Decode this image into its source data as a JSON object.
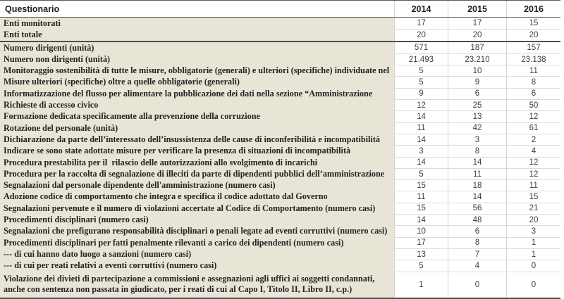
{
  "table": {
    "title": "Questionario",
    "columns": [
      "2014",
      "2015",
      "2016"
    ],
    "colors": {
      "label_column_bg": "#e9e5d6",
      "divider_dark": "#4f4f4f",
      "divider_light": "#dcdcd8",
      "label_text": "#232323",
      "value_text": "#3e3e3e"
    },
    "thick_divider_before_row_index": 2,
    "rows": [
      {
        "label": "Enti monitorati",
        "values": [
          "17",
          "17",
          "15"
        ]
      },
      {
        "label": "Enti totale",
        "values": [
          "20",
          "20",
          "20"
        ]
      },
      {
        "label": "Numero dirigenti (unità)",
        "values": [
          "571",
          "187",
          "157"
        ]
      },
      {
        "label": "Numero non dirigenti (unità)",
        "values": [
          "21.493",
          "23.210",
          "23.138"
        ]
      },
      {
        "label": "Monitoraggio sostenibilità di tutte le misure, obbligatorie (generali) e ulteriori (specifiche) individuate nel",
        "values": [
          "5",
          "10",
          "11"
        ]
      },
      {
        "label": "Misure ulteriori (specifiche) oltre a quelle obbligatorie (generali)",
        "values": [
          "5",
          "9",
          "8"
        ]
      },
      {
        "label": "Informatizzazione del flusso per alimentare la pubblicazione dei dati nella sezione “Amministrazione",
        "values": [
          "9",
          "6",
          "6"
        ]
      },
      {
        "label": "Richieste di accesso civico",
        "values": [
          "12",
          "25",
          "50"
        ]
      },
      {
        "label": "Formazione dedicata specificamente alla prevenzione della corruzione",
        "values": [
          "14",
          "13",
          "12"
        ]
      },
      {
        "label": "Rotazione del personale (unità)",
        "values": [
          "11",
          "42",
          "61"
        ]
      },
      {
        "label": "Dichiarazione da parte dell’interessato dell’insussistenza delle cause di inconferibilità e incompatibilità",
        "values": [
          "14",
          "3",
          "2"
        ]
      },
      {
        "label": "Indicare se sono state adottate misure per verificare la presenza di situazioni di incompatibilità",
        "values": [
          "3",
          "8",
          "4"
        ]
      },
      {
        "label": "Procedura prestabilita per il  rilascio delle autorizzazioni allo svolgimento di incarichi",
        "values": [
          "14",
          "14",
          "12"
        ]
      },
      {
        "label": "Procedura per la raccolta di segnalazione di illeciti da parte di dipendenti pubblici dell’amministrazione",
        "values": [
          "5",
          "11",
          "12"
        ]
      },
      {
        "label": "Segnalazioni dal personale dipendente dell'amministrazione (numero casi)",
        "values": [
          "15",
          "18",
          "11"
        ]
      },
      {
        "label": "Adozione codice di comportamento che integra e specifica il codice adottato dal Governo",
        "values": [
          "11",
          "14",
          "15"
        ]
      },
      {
        "label": "Segnalazioni pervenute e il numero di violazioni accertate al Codice di Comportamento (numero casi)",
        "values": [
          "15",
          "56",
          "21"
        ]
      },
      {
        "label": "Procedimenti disciplinari (numero casi)",
        "values": [
          "14",
          "48",
          "20"
        ]
      },
      {
        "label": "Segnalazioni che prefigurano responsabilità disciplinari o penali legate ad eventi corruttivi (numero casi)",
        "values": [
          "10",
          "6",
          "3"
        ]
      },
      {
        "label": "Procedimenti disciplinari per fatti penalmente rilevanti a carico dei dipendenti (numero casi)",
        "values": [
          "17",
          "8",
          "1"
        ]
      },
      {
        "label": "--- di cui hanno dato luogo a sanzioni (numero casi)",
        "values": [
          "13",
          "7",
          "1"
        ]
      },
      {
        "label": "--- di cui per reati relativi a eventi corruttivi (numero casi)",
        "values": [
          "5",
          "4",
          "0"
        ]
      },
      {
        "label": "Violazione dei divieti di partecipazione a commissioni e assegnazioni agli uffici ai soggetti condannati,\nanche con sentenza non passata in giudicato, per i reati di cui al Capo I, Titolo II, Libro II, c.p.)",
        "values": [
          "1",
          "0",
          "0"
        ],
        "tall": true
      }
    ]
  }
}
